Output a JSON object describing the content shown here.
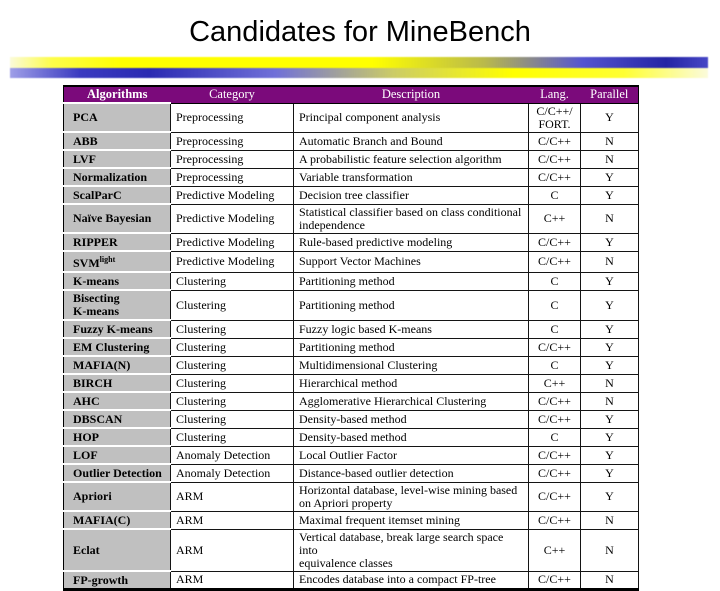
{
  "slide": {
    "title": "Candidates for MineBench"
  },
  "colors": {
    "header_bg": "#7B0A7B",
    "header_text": "#FFFFFF",
    "algorithm_cell_bg": "#C0C0C0",
    "ribbon_yellow": "#FFFF00",
    "ribbon_blue": "#2A2AB2",
    "body_text": "#000000"
  },
  "table": {
    "headers": {
      "algorithms": "Algorithms",
      "category": "Category",
      "description": "Description",
      "lang": "Lang.",
      "parallel": "Parallel"
    },
    "rows": [
      {
        "algorithm": "PCA",
        "category": "Preprocessing",
        "description": "Principal component analysis",
        "lang": "C/C++/\nFORT.",
        "parallel": "Y"
      },
      {
        "algorithm": "ABB",
        "category": "Preprocessing",
        "description": "Automatic Branch and Bound",
        "lang": "C/C++",
        "parallel": "N"
      },
      {
        "algorithm": "LVF",
        "category": "Preprocessing",
        "description": "A probabilistic feature selection algorithm",
        "lang": "C/C++",
        "parallel": "N"
      },
      {
        "algorithm": "Normalization",
        "category": "Preprocessing",
        "description": "Variable transformation",
        "lang": "C/C++",
        "parallel": "Y"
      },
      {
        "algorithm": "ScalParC",
        "category": "Predictive Modeling",
        "description": "Decision tree classifier",
        "lang": "C",
        "parallel": "Y"
      },
      {
        "algorithm": "Naïve Bayesian",
        "category": "Predictive Modeling",
        "description": "Statistical classifier based on class conditional\nindependence",
        "lang": "C++",
        "parallel": "N"
      },
      {
        "algorithm": "RIPPER",
        "category": "Predictive Modeling",
        "description": "Rule-based predictive modeling",
        "lang": "C/C++",
        "parallel": "Y"
      },
      {
        "algorithm": "SVM",
        "algorithm_sup": "light",
        "category": "Predictive Modeling",
        "description": "Support Vector Machines",
        "lang": "C/C++",
        "parallel": "N"
      },
      {
        "algorithm": "K-means",
        "category": "Clustering",
        "description": "Partitioning method",
        "lang": "C",
        "parallel": "Y"
      },
      {
        "algorithm": "Bisecting\nK-means",
        "category": "Clustering",
        "description": "Partitioning method",
        "lang": "C",
        "parallel": "Y"
      },
      {
        "algorithm": "Fuzzy K-means",
        "category": "Clustering",
        "description": "Fuzzy logic based K-means",
        "lang": "C",
        "parallel": "Y"
      },
      {
        "algorithm": "EM Clustering",
        "category": "Clustering",
        "description": "Partitioning method",
        "lang": "C/C++",
        "parallel": "Y"
      },
      {
        "algorithm": "MAFIA(N)",
        "category": "Clustering",
        "description": "Multidimensional Clustering",
        "lang": "C",
        "parallel": "Y"
      },
      {
        "algorithm": "BIRCH",
        "category": "Clustering",
        "description": "Hierarchical method",
        "lang": "C++",
        "parallel": "N"
      },
      {
        "algorithm": "AHC",
        "category": "Clustering",
        "description": "Agglomerative Hierarchical Clustering",
        "lang": "C/C++",
        "parallel": "N"
      },
      {
        "algorithm": "DBSCAN",
        "category": "Clustering",
        "description": "Density-based method",
        "lang": "C/C++",
        "parallel": "Y"
      },
      {
        "algorithm": "HOP",
        "category": "Clustering",
        "description": "Density-based method",
        "lang": "C",
        "parallel": "Y"
      },
      {
        "algorithm": "LOF",
        "category": "Anomaly Detection",
        "description": "Local Outlier Factor",
        "lang": "C/C++",
        "parallel": "Y"
      },
      {
        "algorithm": "Outlier Detection",
        "category": "Anomaly Detection",
        "description": "Distance-based outlier detection",
        "lang": "C/C++",
        "parallel": "Y"
      },
      {
        "algorithm": "Apriori",
        "category": "ARM",
        "description": "Horizontal database, level-wise mining based\non Apriori property",
        "lang": "C/C++",
        "parallel": "Y"
      },
      {
        "algorithm": "MAFIA(C)",
        "category": "ARM",
        "description": "Maximal frequent itemset mining",
        "lang": "C/C++",
        "parallel": "N"
      },
      {
        "algorithm": "Eclat",
        "category": "ARM",
        "description": "Vertical database, break large search space into\nequivalence classes",
        "lang": "C++",
        "parallel": "N"
      },
      {
        "algorithm": "FP-growth",
        "category": "ARM",
        "description": "Encodes database into a compact FP-tree",
        "lang": "C/C++",
        "parallel": "N"
      }
    ]
  }
}
